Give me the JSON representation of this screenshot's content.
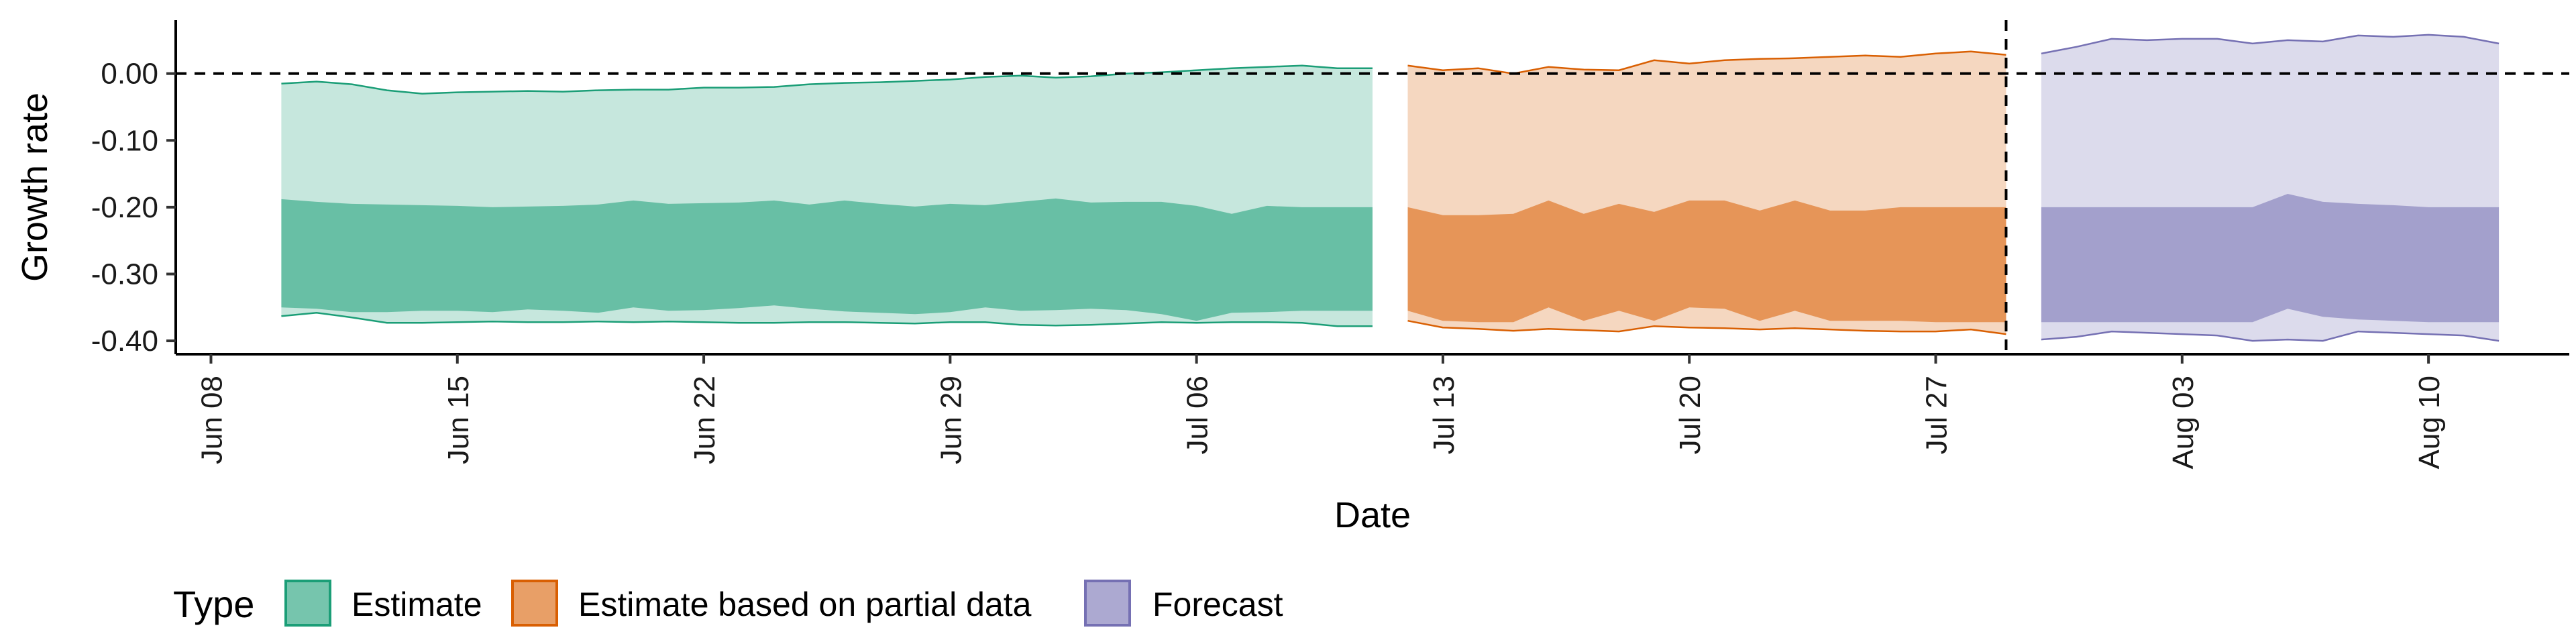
{
  "chart_data": {
    "type": "area",
    "xlabel": "Date",
    "ylabel": "Growth rate",
    "ylim": [
      -0.42,
      0.08
    ],
    "xlim": [
      "2020-06-07",
      "2020-08-14"
    ],
    "y_ticks": [
      0.0,
      -0.1,
      -0.2,
      -0.3,
      -0.4
    ],
    "y_tick_labels": [
      "0.00",
      "-0.10",
      "-0.20",
      "-0.30",
      "-0.40"
    ],
    "x_ticks": [
      "2020-06-08",
      "2020-06-15",
      "2020-06-22",
      "2020-06-29",
      "2020-07-06",
      "2020-07-13",
      "2020-07-20",
      "2020-07-27",
      "2020-08-03",
      "2020-08-10"
    ],
    "x_tick_labels": [
      "Jun 08",
      "Jun 15",
      "Jun 22",
      "Jun 29",
      "Jul 06",
      "Jul 13",
      "Jul 20",
      "Jul 27",
      "Aug 03",
      "Aug 10"
    ],
    "reference_lines": {
      "horizontal_y": 0.0,
      "vertical_x": "2020-07-29"
    },
    "grid": false,
    "legend": {
      "title": "Type",
      "position": "bottom",
      "entries": [
        "Estimate",
        "Estimate based on partial data",
        "Forecast"
      ]
    },
    "series": [
      {
        "name": "Estimate",
        "fill_color": "#1b9e77",
        "x": [
          "2020-06-10",
          "2020-06-11",
          "2020-06-12",
          "2020-06-13",
          "2020-06-14",
          "2020-06-15",
          "2020-06-16",
          "2020-06-17",
          "2020-06-18",
          "2020-06-19",
          "2020-06-20",
          "2020-06-21",
          "2020-06-22",
          "2020-06-23",
          "2020-06-24",
          "2020-06-25",
          "2020-06-26",
          "2020-06-27",
          "2020-06-28",
          "2020-06-29",
          "2020-06-30",
          "2020-07-01",
          "2020-07-02",
          "2020-07-03",
          "2020-07-04",
          "2020-07-05",
          "2020-07-06",
          "2020-07-07",
          "2020-07-08",
          "2020-07-09",
          "2020-07-10",
          "2020-07-11"
        ],
        "outer_upper": [
          -0.015,
          -0.012,
          -0.016,
          -0.025,
          -0.03,
          -0.028,
          -0.027,
          -0.026,
          -0.027,
          -0.025,
          -0.024,
          -0.024,
          -0.021,
          -0.021,
          -0.02,
          -0.016,
          -0.014,
          -0.013,
          -0.011,
          -0.009,
          -0.005,
          -0.003,
          -0.006,
          -0.004,
          0.0,
          0.002,
          0.005,
          0.008,
          0.01,
          0.012,
          0.008,
          0.008
        ],
        "inner_upper": [
          -0.188,
          -0.192,
          -0.195,
          -0.196,
          -0.197,
          -0.198,
          -0.2,
          -0.199,
          -0.198,
          -0.196,
          -0.19,
          -0.195,
          -0.194,
          -0.193,
          -0.19,
          -0.196,
          -0.19,
          -0.195,
          -0.199,
          -0.195,
          -0.197,
          -0.192,
          -0.187,
          -0.193,
          -0.192,
          -0.192,
          -0.198,
          -0.21,
          -0.198,
          -0.2,
          -0.2,
          -0.2
        ],
        "inner_lower": [
          -0.35,
          -0.352,
          -0.357,
          -0.357,
          -0.355,
          -0.355,
          -0.357,
          -0.353,
          -0.355,
          -0.358,
          -0.35,
          -0.355,
          -0.354,
          -0.351,
          -0.347,
          -0.352,
          -0.356,
          -0.358,
          -0.36,
          -0.357,
          -0.35,
          -0.355,
          -0.354,
          -0.352,
          -0.354,
          -0.36,
          -0.37,
          -0.358,
          -0.357,
          -0.355,
          -0.355,
          -0.355
        ],
        "outer_lower": [
          -0.363,
          -0.358,
          -0.365,
          -0.373,
          -0.373,
          -0.372,
          -0.371,
          -0.372,
          -0.372,
          -0.371,
          -0.372,
          -0.371,
          -0.372,
          -0.373,
          -0.373,
          -0.372,
          -0.372,
          -0.373,
          -0.374,
          -0.372,
          -0.372,
          -0.376,
          -0.377,
          -0.376,
          -0.374,
          -0.372,
          -0.373,
          -0.372,
          -0.372,
          -0.373,
          -0.378,
          -0.378
        ]
      },
      {
        "name": "Estimate based on partial data",
        "fill_color": "#d95f02",
        "x": [
          "2020-07-12",
          "2020-07-13",
          "2020-07-14",
          "2020-07-15",
          "2020-07-16",
          "2020-07-17",
          "2020-07-18",
          "2020-07-19",
          "2020-07-20",
          "2020-07-21",
          "2020-07-22",
          "2020-07-23",
          "2020-07-24",
          "2020-07-25",
          "2020-07-26",
          "2020-07-27",
          "2020-07-28",
          "2020-07-29"
        ],
        "outer_upper": [
          0.012,
          0.005,
          0.008,
          0.0,
          0.01,
          0.006,
          0.005,
          0.02,
          0.015,
          0.02,
          0.022,
          0.023,
          0.025,
          0.027,
          0.025,
          0.03,
          0.033,
          0.028
        ],
        "inner_upper": [
          -0.2,
          -0.212,
          -0.212,
          -0.21,
          -0.19,
          -0.21,
          -0.195,
          -0.207,
          -0.19,
          -0.19,
          -0.205,
          -0.19,
          -0.205,
          -0.205,
          -0.2,
          -0.2,
          -0.2,
          -0.2
        ],
        "inner_lower": [
          -0.355,
          -0.37,
          -0.372,
          -0.372,
          -0.35,
          -0.37,
          -0.355,
          -0.37,
          -0.35,
          -0.352,
          -0.37,
          -0.355,
          -0.37,
          -0.37,
          -0.37,
          -0.372,
          -0.372,
          -0.372
        ],
        "outer_lower": [
          -0.37,
          -0.38,
          -0.382,
          -0.385,
          -0.382,
          -0.384,
          -0.386,
          -0.378,
          -0.38,
          -0.381,
          -0.383,
          -0.381,
          -0.383,
          -0.385,
          -0.386,
          -0.386,
          -0.383,
          -0.39
        ]
      },
      {
        "name": "Forecast",
        "fill_color": "#7570b3",
        "x": [
          "2020-07-30",
          "2020-07-31",
          "2020-08-01",
          "2020-08-02",
          "2020-08-03",
          "2020-08-04",
          "2020-08-05",
          "2020-08-06",
          "2020-08-07",
          "2020-08-08",
          "2020-08-09",
          "2020-08-10",
          "2020-08-11",
          "2020-08-12"
        ],
        "outer_upper": [
          0.03,
          0.04,
          0.052,
          0.05,
          0.052,
          0.052,
          0.045,
          0.05,
          0.048,
          0.057,
          0.055,
          0.058,
          0.055,
          0.045
        ],
        "inner_upper": [
          -0.2,
          -0.2,
          -0.2,
          -0.2,
          -0.2,
          -0.2,
          -0.2,
          -0.18,
          -0.192,
          -0.195,
          -0.197,
          -0.2,
          -0.2,
          -0.2
        ],
        "inner_lower": [
          -0.372,
          -0.372,
          -0.372,
          -0.372,
          -0.372,
          -0.372,
          -0.372,
          -0.352,
          -0.364,
          -0.368,
          -0.37,
          -0.372,
          -0.372,
          -0.372
        ],
        "outer_lower": [
          -0.398,
          -0.394,
          -0.386,
          -0.388,
          -0.39,
          -0.392,
          -0.4,
          -0.398,
          -0.4,
          -0.386,
          -0.388,
          -0.39,
          -0.392,
          -0.4
        ]
      }
    ]
  }
}
